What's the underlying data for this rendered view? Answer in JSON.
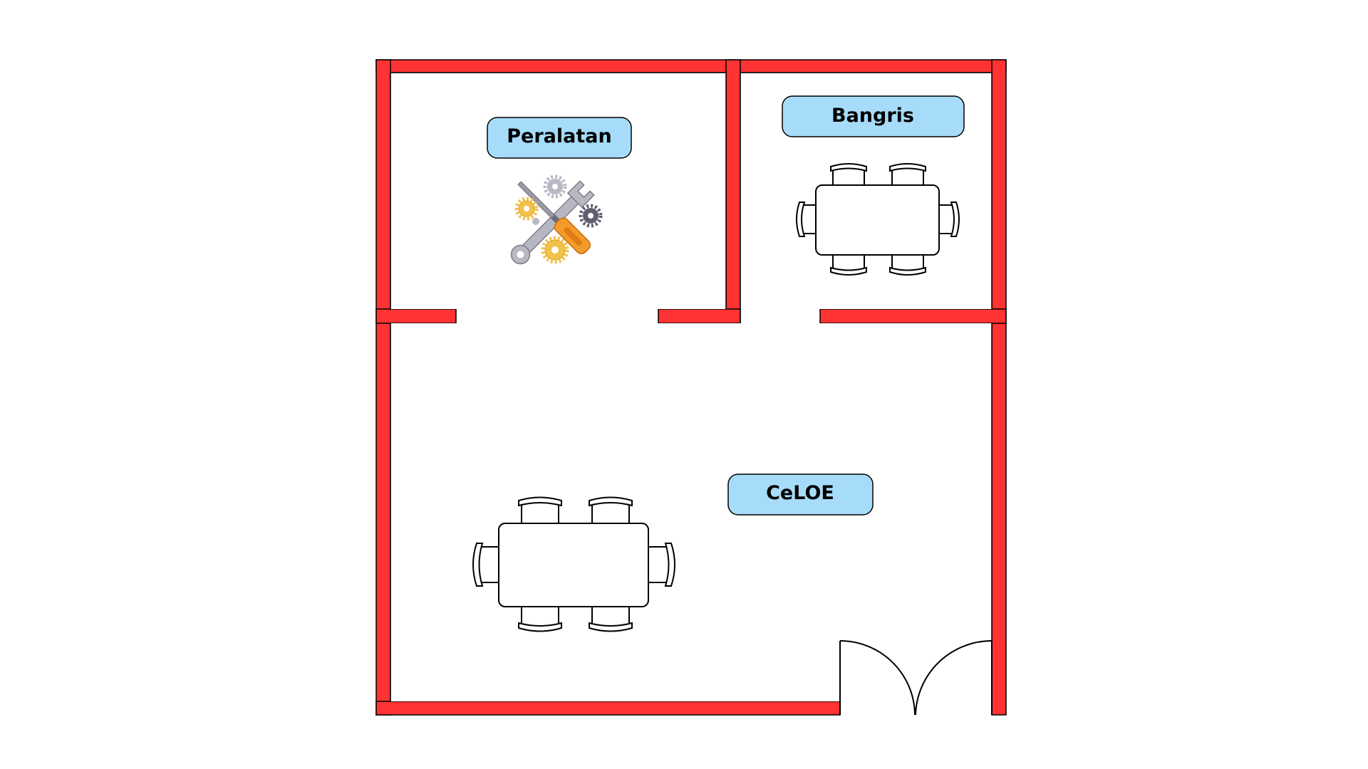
{
  "rooms": {
    "peralatan": {
      "label": "Peralatan"
    },
    "bangris": {
      "label": "Bangris"
    },
    "celoe": {
      "label": "CeLOE"
    }
  },
  "icons": {
    "tools": "tools-icon",
    "door": "double-door-icon",
    "table": "table-with-chairs-icon"
  },
  "colors": {
    "wall": "#ff3333",
    "label_fill": "#a6dcf9",
    "outline": "#000000"
  }
}
